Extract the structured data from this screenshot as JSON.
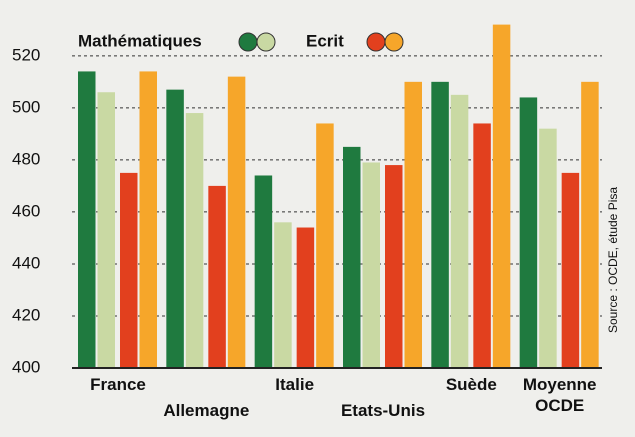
{
  "chart_data": {
    "type": "bar",
    "legend": [
      "Mathématiques",
      "Ecrit"
    ],
    "source": "Source : OCDE, étude Pisa",
    "categories": [
      "France",
      "Allemagne",
      "Italie",
      "Etats-Unis",
      "Suède",
      "Moyenne OCDE"
    ],
    "series": [
      {
        "color": "#1f7a3f",
        "values": [
          514,
          507,
          474,
          485,
          510,
          504
        ]
      },
      {
        "color": "#c9d9a3",
        "values": [
          506,
          498,
          456,
          479,
          505,
          492
        ]
      },
      {
        "color": "#e2401e",
        "values": [
          475,
          470,
          454,
          478,
          494,
          475
        ]
      },
      {
        "color": "#f6a62a",
        "values": [
          514,
          512,
          494,
          510,
          532,
          510
        ]
      }
    ],
    "ylim": [
      400,
      533
    ],
    "yticks": [
      400,
      420,
      440,
      460,
      480,
      500,
      520
    ],
    "grid": true
  }
}
